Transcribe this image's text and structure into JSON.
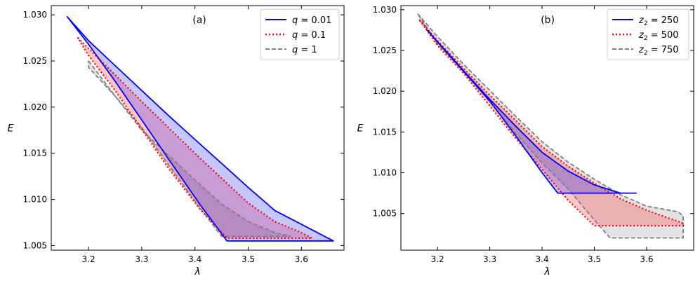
{
  "chart_data": [
    {
      "type": "area",
      "panel_label": "(a)",
      "xlabel": "λ",
      "ylabel": "E",
      "xlim": [
        3.13,
        3.68
      ],
      "ylim": [
        1.0045,
        1.031
      ],
      "xticks": [
        "3.2",
        "3.3",
        "3.4",
        "3.5",
        "3.6"
      ],
      "yticks": [
        "1.005",
        "1.010",
        "1.015",
        "1.020",
        "1.025",
        "1.030"
      ],
      "legend_position": "top-right",
      "series": [
        {
          "name": "q = 0.01",
          "legend_prefix": "q",
          "legend_value": "= 0.01",
          "color": "#0000ff",
          "fill": "#0000ff",
          "dash": "solid",
          "polygon": [
            [
              3.16,
              1.0298
            ],
            [
              3.2,
              1.0272
            ],
            [
              3.25,
              1.0245
            ],
            [
              3.3,
              1.0218
            ],
            [
              3.35,
              1.0191
            ],
            [
              3.4,
              1.0165
            ],
            [
              3.45,
              1.0139
            ],
            [
              3.5,
              1.0113
            ],
            [
              3.55,
              1.0088
            ],
            [
              3.6,
              1.0073
            ],
            [
              3.66,
              1.0055
            ],
            [
              3.58,
              1.0055
            ],
            [
              3.52,
              1.0055
            ],
            [
              3.46,
              1.0055
            ],
            [
              3.41,
              1.0094
            ],
            [
              3.35,
              1.0144
            ],
            [
              3.3,
              1.0186
            ],
            [
              3.25,
              1.0228
            ],
            [
              3.2,
              1.0268
            ]
          ]
        },
        {
          "name": "q = 0.1",
          "legend_prefix": "q",
          "legend_value": "= 0.1",
          "color": "#ff0000",
          "fill": "#ff0000",
          "dash": "dotted",
          "polygon": [
            [
              3.18,
              1.0275
            ],
            [
              3.25,
              1.0235
            ],
            [
              3.3,
              1.0206
            ],
            [
              3.35,
              1.0178
            ],
            [
              3.4,
              1.015
            ],
            [
              3.45,
              1.0123
            ],
            [
              3.5,
              1.0096
            ],
            [
              3.55,
              1.0076
            ],
            [
              3.6,
              1.0064
            ],
            [
              3.62,
              1.0058
            ],
            [
              3.55,
              1.0058
            ],
            [
              3.5,
              1.0058
            ],
            [
              3.46,
              1.0058
            ],
            [
              3.41,
              1.0089
            ],
            [
              3.35,
              1.0134
            ],
            [
              3.3,
              1.0176
            ],
            [
              3.25,
              1.0218
            ],
            [
              3.2,
              1.0256
            ]
          ]
        },
        {
          "name": "q = 1",
          "legend_prefix": "q",
          "legend_value": "= 1",
          "color": "#808080",
          "fill": "#808080",
          "dash": "dashed",
          "polygon": [
            [
              3.2,
              1.025
            ],
            [
              3.25,
              1.0212
            ],
            [
              3.3,
              1.0175
            ],
            [
              3.35,
              1.0148
            ],
            [
              3.4,
              1.0121
            ],
            [
              3.45,
              1.0095
            ],
            [
              3.5,
              1.0076
            ],
            [
              3.55,
              1.0064
            ],
            [
              3.58,
              1.006
            ],
            [
              3.52,
              1.006
            ],
            [
              3.47,
              1.006
            ],
            [
              3.45,
              1.006
            ],
            [
              3.4,
              1.0098
            ],
            [
              3.35,
              1.0138
            ],
            [
              3.3,
              1.0178
            ],
            [
              3.25,
              1.0212
            ],
            [
              3.2,
              1.0243
            ]
          ]
        }
      ]
    },
    {
      "type": "area",
      "panel_label": "(b)",
      "xlabel": "λ",
      "ylabel": "E",
      "xlim": [
        3.13,
        3.69
      ],
      "ylim": [
        1.0005,
        1.0305
      ],
      "xticks": [
        "3.2",
        "3.3",
        "3.4",
        "3.5",
        "3.6"
      ],
      "yticks": [
        "1.005",
        "1.010",
        "1.015",
        "1.020",
        "1.025",
        "1.030"
      ],
      "legend_position": "top-right",
      "series": [
        {
          "name": "z2 = 250",
          "legend_prefix": "z",
          "legend_sub": "2",
          "legend_value": "= 250",
          "color": "#0000ff",
          "fill": "#0000ff",
          "dash": "solid",
          "polygon": [
            [
              3.18,
              1.0275
            ],
            [
              3.25,
              1.0225
            ],
            [
              3.3,
              1.019
            ],
            [
              3.35,
              1.0157
            ],
            [
              3.4,
              1.0125
            ],
            [
              3.45,
              1.0102
            ],
            [
              3.5,
              1.0085
            ],
            [
              3.55,
              1.0075
            ],
            [
              3.58,
              1.0075
            ],
            [
              3.5,
              1.0075
            ],
            [
              3.43,
              1.0075
            ],
            [
              3.4,
              1.01
            ],
            [
              3.35,
              1.0145
            ],
            [
              3.3,
              1.0188
            ],
            [
              3.25,
              1.0224
            ]
          ]
        },
        {
          "name": "z2 = 500",
          "legend_prefix": "z",
          "legend_sub": "2",
          "legend_value": "= 500",
          "color": "#ff0000",
          "fill": "#ff0000",
          "dash": "dotted",
          "polygon": [
            [
              3.165,
              1.0288
            ],
            [
              3.2,
              1.0262
            ],
            [
              3.25,
              1.0228
            ],
            [
              3.3,
              1.0195
            ],
            [
              3.35,
              1.0164
            ],
            [
              3.4,
              1.0132
            ],
            [
              3.45,
              1.0108
            ],
            [
              3.5,
              1.0087
            ],
            [
              3.55,
              1.0068
            ],
            [
              3.6,
              1.0054
            ],
            [
              3.67,
              1.0038
            ],
            [
              3.67,
              1.0035
            ],
            [
              3.6,
              1.0035
            ],
            [
              3.5,
              1.0035
            ],
            [
              3.45,
              1.0066
            ],
            [
              3.4,
              1.0104
            ],
            [
              3.35,
              1.0142
            ],
            [
              3.3,
              1.0182
            ],
            [
              3.25,
              1.0222
            ],
            [
              3.2,
              1.0256
            ]
          ]
        },
        {
          "name": "z2 = 750",
          "legend_prefix": "z",
          "legend_sub": "2",
          "legend_value": "= 750",
          "color": "#808080",
          "fill": "#808080",
          "dash": "dashed",
          "polygon": [
            [
              3.162,
              1.0295
            ],
            [
              3.2,
              1.0267
            ],
            [
              3.25,
              1.0233
            ],
            [
              3.3,
              1.0201
            ],
            [
              3.35,
              1.0169
            ],
            [
              3.4,
              1.0138
            ],
            [
              3.45,
              1.0113
            ],
            [
              3.5,
              1.0092
            ],
            [
              3.55,
              1.0073
            ],
            [
              3.6,
              1.0059
            ],
            [
              3.66,
              1.0052
            ],
            [
              3.67,
              1.0047
            ],
            [
              3.67,
              1.002
            ],
            [
              3.6,
              1.002
            ],
            [
              3.53,
              1.002
            ],
            [
              3.5,
              1.0042
            ],
            [
              3.45,
              1.008
            ],
            [
              3.4,
              1.0112
            ],
            [
              3.35,
              1.0148
            ],
            [
              3.3,
              1.0187
            ],
            [
              3.25,
              1.0225
            ],
            [
              3.2,
              1.0258
            ]
          ]
        }
      ]
    }
  ]
}
